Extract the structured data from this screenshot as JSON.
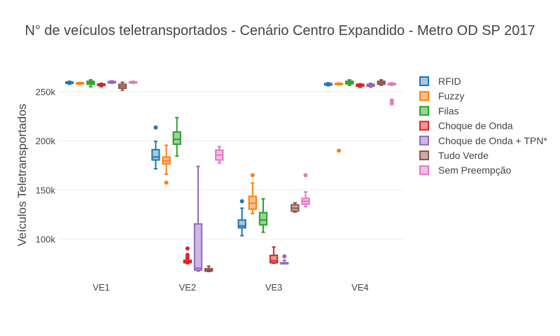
{
  "chart_data": {
    "type": "box",
    "title": "N° de veículos teletransportados - Cenário Centro Expandido - Metro OD SP 2017",
    "xlabel": "",
    "ylabel": "Veículos Teletransportados",
    "categories": [
      "VE1",
      "VE2",
      "VE3",
      "VE4"
    ],
    "ylim": [
      62000,
      272000
    ],
    "yticks": [
      {
        "value": 100000,
        "label": "100k"
      },
      {
        "value": 150000,
        "label": "150k"
      },
      {
        "value": 200000,
        "label": "200k"
      },
      {
        "value": 250000,
        "label": "250k"
      }
    ],
    "grid": true,
    "legend_position": "right",
    "series": [
      {
        "name": "RFID",
        "color": "#1f77b4",
        "fill": "#a6c6e1",
        "boxes": [
          {
            "min": 257500,
            "q1": 258500,
            "median": 259000,
            "q3": 259700,
            "max": 260500,
            "outliers": []
          },
          {
            "min": 171500,
            "q1": 180500,
            "median": 183500,
            "q3": 191000,
            "max": 199500,
            "outliers": [
              213500
            ]
          },
          {
            "min": 103500,
            "q1": 111500,
            "median": 113500,
            "q3": 119500,
            "max": 131500,
            "outliers": [
              138500
            ]
          },
          {
            "min": 256000,
            "q1": 256800,
            "median": 257300,
            "q3": 258200,
            "max": 259000,
            "outliers": []
          }
        ]
      },
      {
        "name": "Fuzzy",
        "color": "#ff7f0e",
        "fill": "#ffc08a",
        "boxes": [
          {
            "min": 257500,
            "q1": 258000,
            "median": 258500,
            "q3": 259000,
            "max": 259300,
            "outliers": []
          },
          {
            "min": 166000,
            "q1": 176500,
            "median": 179500,
            "q3": 183500,
            "max": 195500,
            "outliers": [
              157500
            ]
          },
          {
            "min": 126000,
            "q1": 130500,
            "median": 136500,
            "q3": 143500,
            "max": 157000,
            "outliers": [
              165000
            ]
          },
          {
            "min": 257000,
            "q1": 257400,
            "median": 257800,
            "q3": 258300,
            "max": 258800,
            "outliers": [
              190000
            ]
          }
        ]
      },
      {
        "name": "Filas",
        "color": "#2ca02c",
        "fill": "#98d398",
        "boxes": [
          {
            "min": 255000,
            "q1": 257500,
            "median": 259000,
            "q3": 260500,
            "max": 262000,
            "outliers": []
          },
          {
            "min": 184500,
            "q1": 196500,
            "median": 201500,
            "q3": 209000,
            "max": 223500,
            "outliers": []
          },
          {
            "min": 107000,
            "q1": 114500,
            "median": 119500,
            "q3": 127000,
            "max": 141000,
            "outliers": []
          },
          {
            "min": 256500,
            "q1": 258000,
            "median": 259500,
            "q3": 260500,
            "max": 262000,
            "outliers": []
          }
        ]
      },
      {
        "name": "Choque de Onda",
        "color": "#d62728",
        "fill": "#ee9595",
        "boxes": [
          {
            "min": 255000,
            "q1": 256200,
            "median": 257000,
            "q3": 257800,
            "max": 258500,
            "outliers": []
          },
          {
            "min": 75000,
            "q1": 76000,
            "median": 77000,
            "q3": 78500,
            "max": 79500,
            "outliers": [
              81500,
              84000,
              90500
            ]
          },
          {
            "min": 75500,
            "q1": 76000,
            "median": 78000,
            "q3": 83500,
            "max": 92000,
            "outliers": []
          },
          {
            "min": 254500,
            "q1": 255500,
            "median": 256500,
            "q3": 257500,
            "max": 258000,
            "outliers": []
          }
        ]
      },
      {
        "name": "Choque de Onda + TPN*",
        "color": "#9467bd",
        "fill": "#cdb8e3",
        "boxes": [
          {
            "min": 258500,
            "q1": 259000,
            "median": 259700,
            "q3": 260300,
            "max": 261000,
            "outliers": []
          },
          {
            "min": 67500,
            "q1": 68500,
            "median": 70500,
            "q3": 115500,
            "max": 174000,
            "outliers": []
          },
          {
            "min": 75000,
            "q1": 75200,
            "median": 75500,
            "q3": 76000,
            "max": 78500,
            "outliers": [
              82500
            ]
          },
          {
            "min": 254500,
            "q1": 255500,
            "median": 256500,
            "q3": 257500,
            "max": 258500,
            "outliers": []
          }
        ]
      },
      {
        "name": "Tudo Verde",
        "color": "#8c564b",
        "fill": "#c9aca6",
        "boxes": [
          {
            "min": 251500,
            "q1": 253500,
            "median": 255500,
            "q3": 257500,
            "max": 259500,
            "outliers": []
          },
          {
            "min": 67000,
            "q1": 67500,
            "median": 68500,
            "q3": 70000,
            "max": 72500,
            "outliers": []
          },
          {
            "min": 127500,
            "q1": 128500,
            "median": 131500,
            "q3": 135000,
            "max": 137000,
            "outliers": []
          },
          {
            "min": 256500,
            "q1": 257500,
            "median": 259000,
            "q3": 260500,
            "max": 262000,
            "outliers": []
          }
        ]
      },
      {
        "name": "Sem Preempção",
        "color": "#e377c2",
        "fill": "#f6bfe4",
        "boxes": [
          {
            "min": 258500,
            "q1": 259000,
            "median": 259500,
            "q3": 260000,
            "max": 260500,
            "outliers": []
          },
          {
            "min": 177500,
            "q1": 180500,
            "median": 185500,
            "q3": 190500,
            "max": 194000,
            "outliers": []
          },
          {
            "min": 133000,
            "q1": 135500,
            "median": 138500,
            "q3": 141500,
            "max": 148000,
            "outliers": [
              165000
            ]
          },
          {
            "min": 256500,
            "q1": 257000,
            "median": 257700,
            "q3": 258300,
            "max": 259000,
            "outliers": [
              238000,
              241000
            ]
          }
        ]
      }
    ]
  }
}
